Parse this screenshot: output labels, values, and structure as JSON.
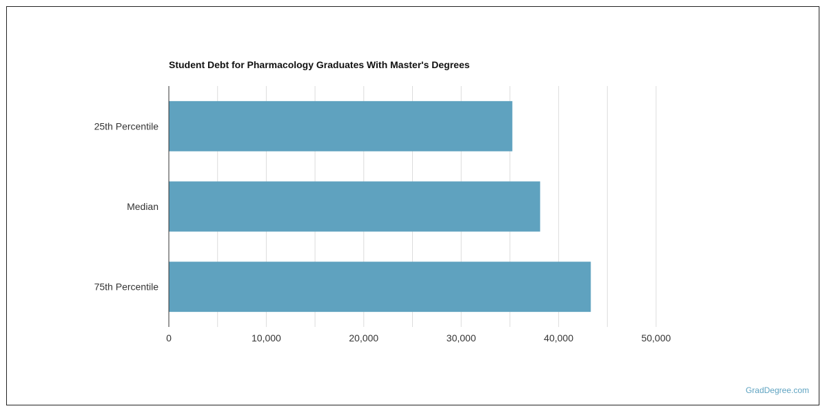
{
  "chart_data": {
    "type": "bar",
    "orientation": "horizontal",
    "title": "Student Debt for Pharmacology Graduates With Master's Degrees",
    "xlabel": "",
    "ylabel": "",
    "categories": [
      "25th Percentile",
      "Median",
      "75th Percentile"
    ],
    "values": [
      35250,
      38100,
      43300
    ],
    "xlim": [
      0,
      52000
    ],
    "x_ticks": [
      0,
      10000,
      20000,
      30000,
      40000,
      50000
    ],
    "x_tick_labels": [
      "0",
      "10,000",
      "20,000",
      "30,000",
      "40,000",
      "50,000"
    ],
    "grid": true,
    "bar_color": "#5fa2bf"
  },
  "footer": {
    "source": "GradDegree.com"
  }
}
